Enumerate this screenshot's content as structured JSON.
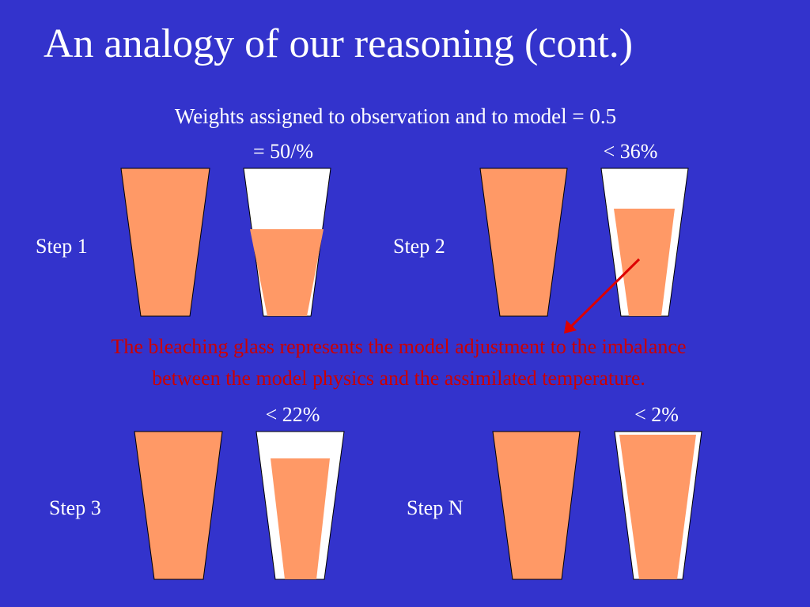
{
  "header": {
    "title": "An analogy of our reasoning (cont.)",
    "subtitle": "Weights assigned to observation and to model = 0.5"
  },
  "steps": [
    {
      "label": "Step 1",
      "difference": "= 50/%"
    },
    {
      "label": "Step 2",
      "difference": "< 36%"
    },
    {
      "label": "Step 3",
      "difference": "< 22%"
    },
    {
      "label": "Step N",
      "difference": "< 2%"
    }
  ],
  "caption": [
    "The bleaching glass represents the model adjustment to the imbalance",
    "between the model physics and the assimilated temperature."
  ]
}
